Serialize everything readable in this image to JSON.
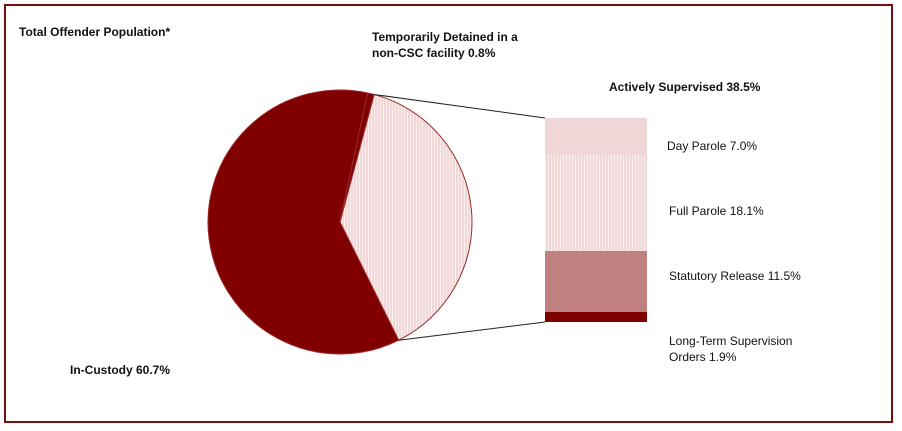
{
  "chart_data": {
    "type": "pie",
    "title": "Total Offender Population*",
    "slices": [
      {
        "label": "In-Custody",
        "value": 60.7,
        "display": "In-Custody 60.7%",
        "color": "#800000",
        "pattern": "solid"
      },
      {
        "label": "Temporarily Detained in a non-CSC facility",
        "value": 0.8,
        "display_line1": "Temporarily Detained in a",
        "display_line2": "non-CSC facility 0.8%",
        "color": "#800000",
        "pattern": "solid"
      },
      {
        "label": "Actively Supervised",
        "value": 38.5,
        "display": "Actively Supervised  38.5%",
        "color": "#f7e6e6",
        "pattern": "vertical-lines"
      }
    ],
    "breakdown_of": "Actively Supervised",
    "breakdown": [
      {
        "label": "Day Parole",
        "value": 7.0,
        "display": "Day Parole  7.0%",
        "color": "#f0d6d6",
        "pattern": "solid"
      },
      {
        "label": "Full Parole",
        "value": 18.1,
        "display": "Full Parole  18.1%",
        "color": "#f3dada",
        "pattern": "vertical-lines"
      },
      {
        "label": "Statutory Release",
        "value": 11.5,
        "display": "Statutory Release 11.5%",
        "color": "#c08080",
        "pattern": "solid"
      },
      {
        "label": "Long-Term Supervision Orders",
        "value": 1.9,
        "display_line1": "Long-Term Supervision",
        "display_line2": "Orders 1.9%",
        "color": "#800000",
        "pattern": "solid"
      }
    ]
  },
  "colors": {
    "frame": "#7a0c0c",
    "dark_red": "#800000",
    "outline": "#9a2a2a"
  }
}
